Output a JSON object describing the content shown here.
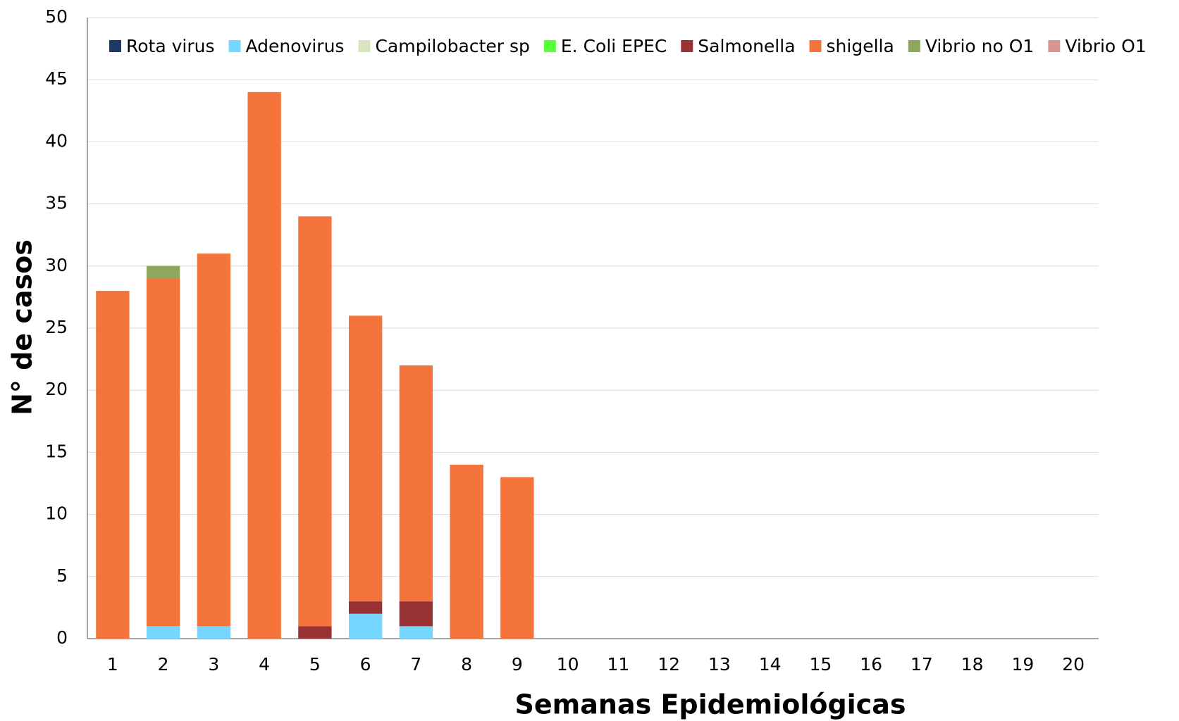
{
  "chart_data": {
    "type": "stacked_bar",
    "x_label": "Semanas Epidemiológicas",
    "y_label": "N° de casos",
    "categories": [
      "1",
      "2",
      "3",
      "4",
      "5",
      "6",
      "7",
      "8",
      "9",
      "10",
      "11",
      "12",
      "13",
      "14",
      "15",
      "16",
      "17",
      "18",
      "19",
      "20"
    ],
    "series": [
      {
        "name": "Rota virus",
        "color": "#1f3864",
        "values": [
          0,
          0,
          0,
          0,
          0,
          0,
          0,
          0,
          0,
          0,
          0,
          0,
          0,
          0,
          0,
          0,
          0,
          0,
          0,
          0
        ]
      },
      {
        "name": "Adenovirus",
        "color": "#75d7ff",
        "values": [
          0,
          1,
          1,
          0,
          0,
          2,
          1,
          0,
          0,
          0,
          0,
          0,
          0,
          0,
          0,
          0,
          0,
          0,
          0,
          0
        ]
      },
      {
        "name": "Campilobacter sp",
        "color": "#d7e4bd",
        "values": [
          0,
          0,
          0,
          0,
          0,
          0,
          0,
          0,
          0,
          0,
          0,
          0,
          0,
          0,
          0,
          0,
          0,
          0,
          0,
          0
        ]
      },
      {
        "name": "E. Coli EPEC",
        "color": "#5aff3c",
        "values": [
          0,
          0,
          0,
          0,
          0,
          0,
          0,
          0,
          0,
          0,
          0,
          0,
          0,
          0,
          0,
          0,
          0,
          0,
          0,
          0
        ]
      },
      {
        "name": "Salmonella",
        "color": "#993333",
        "values": [
          0,
          0,
          0,
          0,
          1,
          1,
          2,
          0,
          0,
          0,
          0,
          0,
          0,
          0,
          0,
          0,
          0,
          0,
          0,
          0
        ]
      },
      {
        "name": "shigella",
        "color": "#f4743b",
        "values": [
          28,
          28,
          30,
          44,
          33,
          23,
          19,
          14,
          13,
          0,
          0,
          0,
          0,
          0,
          0,
          0,
          0,
          0,
          0,
          0
        ]
      },
      {
        "name": "Vibrio no O1",
        "color": "#8ea65d",
        "values": [
          0,
          1,
          0,
          0,
          0,
          0,
          0,
          0,
          0,
          0,
          0,
          0,
          0,
          0,
          0,
          0,
          0,
          0,
          0,
          0
        ]
      },
      {
        "name": "Vibrio O1",
        "color": "#d99594",
        "values": [
          0,
          0,
          0,
          0,
          0,
          0,
          0,
          0,
          0,
          0,
          0,
          0,
          0,
          0,
          0,
          0,
          0,
          0,
          0,
          0
        ]
      }
    ],
    "ylim": [
      0,
      50
    ],
    "yticks": [
      0,
      5,
      10,
      15,
      20,
      25,
      30,
      35,
      40,
      45,
      50
    ],
    "grid": true,
    "legend": "top"
  }
}
